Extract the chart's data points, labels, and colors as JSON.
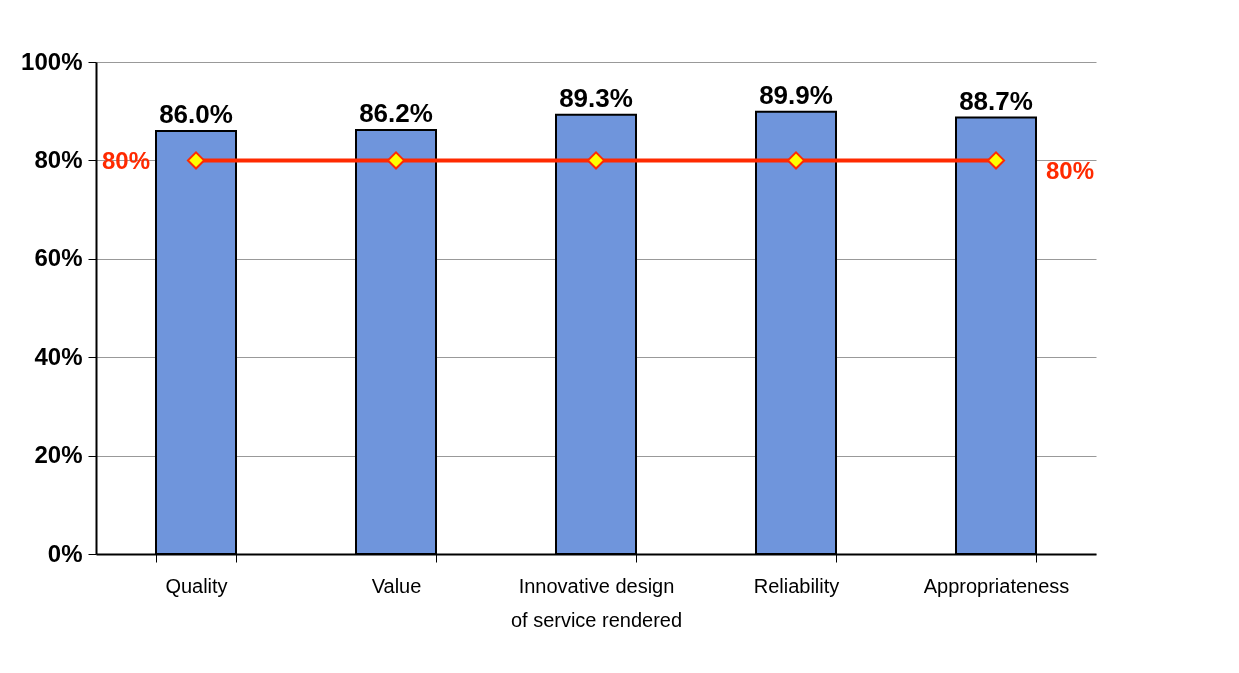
{
  "chart_data": {
    "type": "bar",
    "categories": [
      "Quality",
      "Value",
      "Innovative design of service rendered",
      "Reliability",
      "Appropriateness"
    ],
    "series": [
      {
        "color": "#6f95dc",
        "values": [
          86.0,
          86.2,
          89.3,
          89.9,
          88.7
        ],
        "value_labels": [
          "86.0%",
          "86.2%",
          "89.3%",
          "89.9%",
          "88.7%"
        ]
      },
      {
        "type": "line",
        "color": "#ff2a00",
        "marker": "diamond",
        "values": [
          80,
          80,
          80,
          80,
          80
        ],
        "value_labels": [
          "80%",
          null,
          null,
          null,
          "80%"
        ]
      }
    ],
    "ylim": [
      0,
      100
    ],
    "yticks": [
      {
        "value": 0,
        "label": "0%"
      },
      {
        "value": 20,
        "label": "20%"
      },
      {
        "value": 40,
        "label": "40%"
      },
      {
        "value": 60,
        "label": "60%"
      },
      {
        "value": 80,
        "label": "80%"
      },
      {
        "value": 100,
        "label": "100%"
      }
    ],
    "grid": "y"
  }
}
